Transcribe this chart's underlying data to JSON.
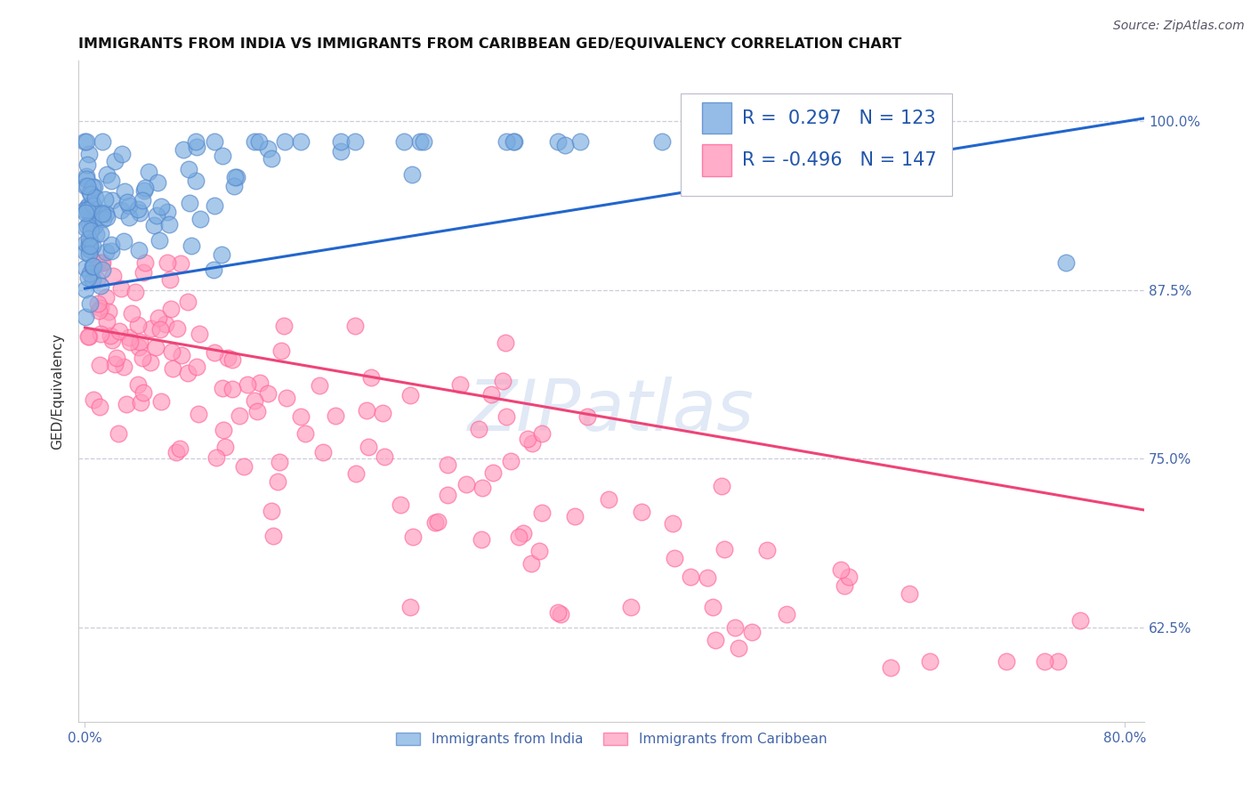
{
  "title": "IMMIGRANTS FROM INDIA VS IMMIGRANTS FROM CARIBBEAN GED/EQUIVALENCY CORRELATION CHART",
  "source_text": "Source: ZipAtlas.com",
  "ylabel": "GED/Equivalency",
  "ytick_labels": [
    "100.0%",
    "87.5%",
    "75.0%",
    "62.5%"
  ],
  "ytick_values": [
    1.0,
    0.875,
    0.75,
    0.625
  ],
  "ylim": [
    0.555,
    1.045
  ],
  "xlim": [
    -0.005,
    0.815
  ],
  "legend_india_r": "0.297",
  "legend_india_n": "123",
  "legend_carib_r": "-0.496",
  "legend_carib_n": "147",
  "india_color": "#7AACE0",
  "india_edge_color": "#5588CC",
  "carib_color": "#FF99BB",
  "carib_edge_color": "#FF6699",
  "india_trend_color": "#2266CC",
  "carib_trend_color": "#EE4477",
  "background_color": "#FFFFFF",
  "watermark_text": "ZIPatlas",
  "watermark_color": "#C8D8EE",
  "title_fontsize": 11.5,
  "axis_label_fontsize": 11,
  "tick_fontsize": 11,
  "legend_fontsize": 15,
  "source_fontsize": 10,
  "india_trend_x0": 0.0,
  "india_trend_y0": 0.876,
  "india_trend_x1": 0.815,
  "india_trend_y1": 1.002,
  "carib_trend_x0": 0.0,
  "carib_trend_y0": 0.847,
  "carib_trend_x1": 0.815,
  "carib_trend_y1": 0.712
}
